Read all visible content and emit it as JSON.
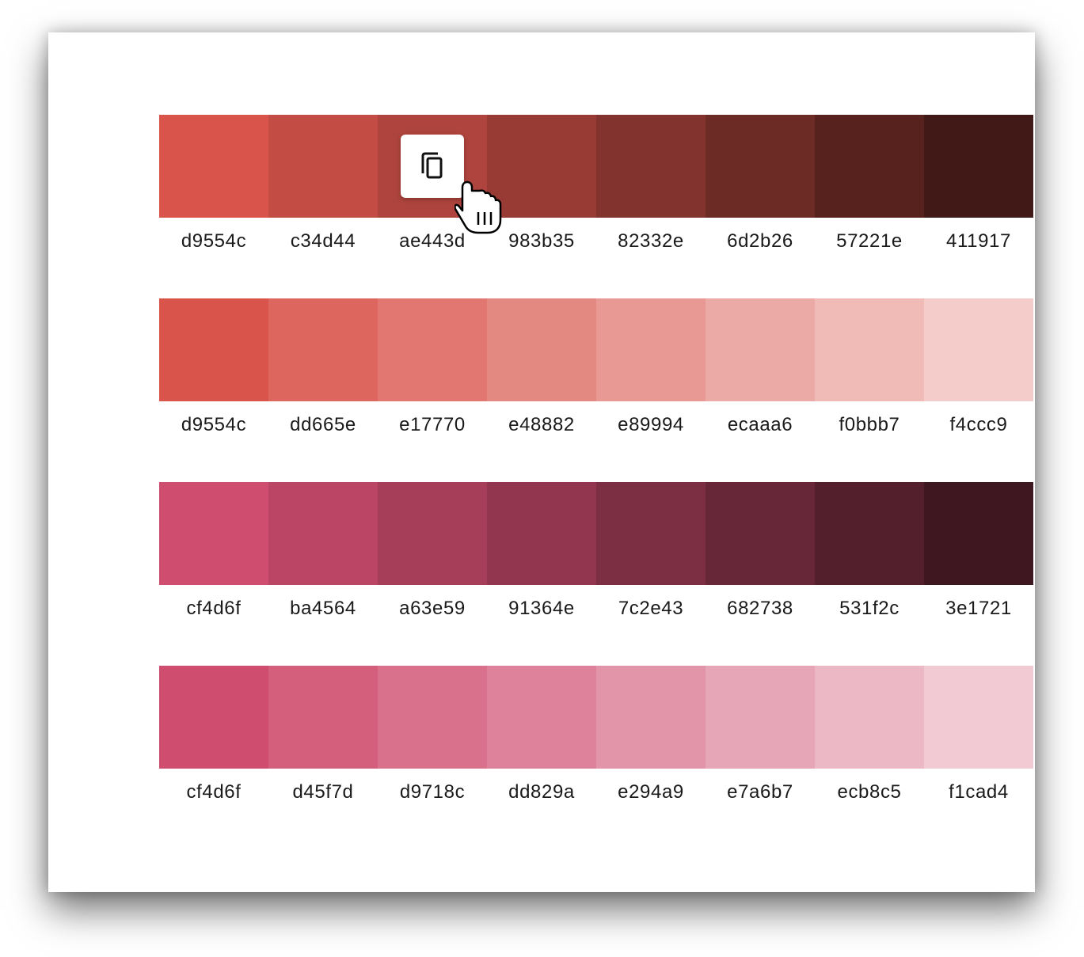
{
  "palettes": [
    {
      "swatches": [
        {
          "hex": "d9554c",
          "color": "#d9554c"
        },
        {
          "hex": "c34d44",
          "color": "#c34d44"
        },
        {
          "hex": "ae443d",
          "color": "#ae443d"
        },
        {
          "hex": "983b35",
          "color": "#983b35"
        },
        {
          "hex": "82332e",
          "color": "#82332e"
        },
        {
          "hex": "6d2b26",
          "color": "#6d2b26"
        },
        {
          "hex": "57221e",
          "color": "#57221e"
        },
        {
          "hex": "411917",
          "color": "#411917"
        }
      ]
    },
    {
      "swatches": [
        {
          "hex": "d9554c",
          "color": "#d9554c"
        },
        {
          "hex": "dd665e",
          "color": "#dd665e"
        },
        {
          "hex": "e17770",
          "color": "#e17770"
        },
        {
          "hex": "e48882",
          "color": "#e48882"
        },
        {
          "hex": "e89994",
          "color": "#e89994"
        },
        {
          "hex": "ecaaa6",
          "color": "#ecaaa6"
        },
        {
          "hex": "f0bbb7",
          "color": "#f0bbb7"
        },
        {
          "hex": "f4ccc9",
          "color": "#f4ccc9"
        }
      ]
    },
    {
      "swatches": [
        {
          "hex": "cf4d6f",
          "color": "#cf4d6f"
        },
        {
          "hex": "ba4564",
          "color": "#ba4564"
        },
        {
          "hex": "a63e59",
          "color": "#a63e59"
        },
        {
          "hex": "91364e",
          "color": "#91364e"
        },
        {
          "hex": "7c2e43",
          "color": "#7c2e43"
        },
        {
          "hex": "682738",
          "color": "#682738"
        },
        {
          "hex": "531f2c",
          "color": "#531f2c"
        },
        {
          "hex": "3e1721",
          "color": "#3e1721"
        }
      ]
    },
    {
      "swatches": [
        {
          "hex": "cf4d6f",
          "color": "#cf4d6f"
        },
        {
          "hex": "d45f7d",
          "color": "#d45f7d"
        },
        {
          "hex": "d9718c",
          "color": "#d9718c"
        },
        {
          "hex": "dd829a",
          "color": "#dd829a"
        },
        {
          "hex": "e294a9",
          "color": "#e294a9"
        },
        {
          "hex": "e7a6b7",
          "color": "#e7a6b7"
        },
        {
          "hex": "ecb8c5",
          "color": "#ecb8c5"
        },
        {
          "hex": "f1cad4",
          "color": "#f1cad4"
        }
      ]
    }
  ],
  "hover": {
    "palette": 0,
    "swatch": 2,
    "icon": "copy-icon"
  },
  "cursor_icon": "pointer-hand-icon"
}
